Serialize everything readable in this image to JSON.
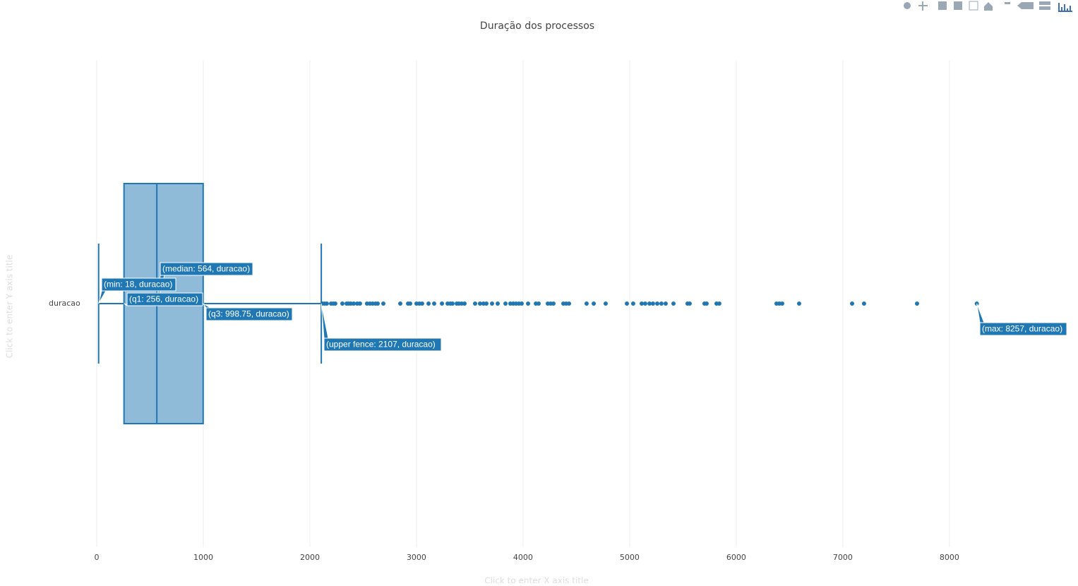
{
  "chart_data": {
    "type": "box",
    "orientation": "h",
    "title": "Duração dos processos",
    "x_axis_title": "Click to enter X axis title",
    "y_axis_title": "Click to enter Y axis title",
    "categories": [
      "duracao"
    ],
    "color": "#1f77b4",
    "min": 18,
    "q1": 256,
    "median": 564,
    "q3": 998.75,
    "upper_fence": 2107,
    "max": 8257,
    "hover_labels": [
      "(median: 564, duracao)",
      "(min: 18, duracao)",
      "(q1: 256, duracao)",
      "(q3: 998.75, duracao)",
      "(upper fence: 2107, duracao)",
      "(max: 8257, duracao)"
    ],
    "outliers": [
      2119,
      2139,
      2159,
      2199,
      2219,
      2238,
      2305,
      2345,
      2364,
      2384,
      2411,
      2444,
      2470,
      2536,
      2563,
      2589,
      2616,
      2636,
      2689,
      2848,
      2921,
      2941,
      3000,
      3027,
      3053,
      3113,
      3166,
      3239,
      3292,
      3318,
      3338,
      3378,
      3398,
      3424,
      3451,
      3550,
      3596,
      3629,
      3656,
      3709,
      3762,
      3835,
      3881,
      3908,
      3934,
      3961,
      3987,
      4047,
      4120,
      4146,
      4232,
      4259,
      4285,
      4378,
      4404,
      4431,
      4596,
      4663,
      4775,
      4974,
      5033,
      5113,
      5146,
      5186,
      5219,
      5259,
      5298,
      5338,
      5411,
      5543,
      5563,
      5702,
      5722,
      5815,
      5841,
      6378,
      6404,
      6431,
      6590,
      7087,
      7199,
      7696,
      8257
    ],
    "xlim": [
      0,
      9160
    ],
    "xticks": [
      0,
      1000,
      2000,
      3000,
      4000,
      5000,
      6000,
      7000,
      8000
    ],
    "grid": true
  }
}
